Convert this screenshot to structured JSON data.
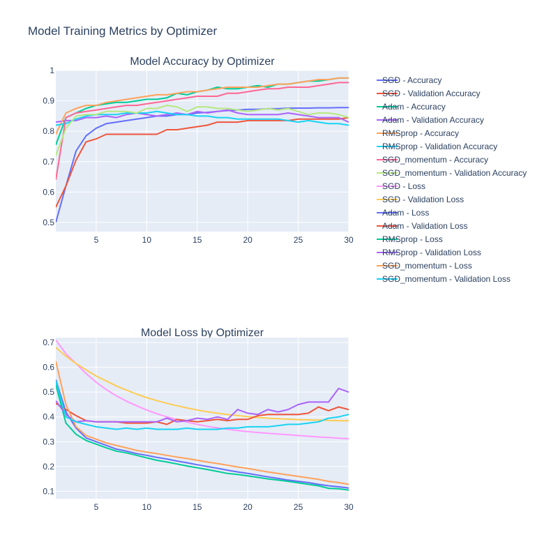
{
  "title": "Model Training Metrics by Optimizer",
  "colors": {
    "plot_bg": "#E5ECF6",
    "grid": "#ffffff",
    "text": "#2a3f5f"
  },
  "legend_position": "right",
  "chart_data": [
    {
      "type": "line",
      "title": "Model Accuracy by Optimizer",
      "xlabel": "",
      "ylabel": "",
      "xlim": [
        1,
        30
      ],
      "ylim": [
        0.47,
        1.0
      ],
      "xticks": [
        5,
        10,
        15,
        20,
        25,
        30
      ],
      "yticks": [
        0.5,
        0.6,
        0.7,
        0.8,
        0.9,
        1
      ],
      "ytick_labels": [
        "0.5",
        "0.6",
        "0.7",
        "0.8",
        "0.9",
        "1"
      ],
      "grid": true,
      "x": [
        1,
        2,
        3,
        4,
        5,
        6,
        7,
        8,
        9,
        10,
        11,
        12,
        13,
        14,
        15,
        16,
        17,
        18,
        19,
        20,
        21,
        22,
        23,
        24,
        25,
        26,
        27,
        28,
        29,
        30
      ],
      "series": [
        {
          "name": "SGD - Accuracy",
          "color": "#636EFA",
          "values": [
            0.5,
            0.62,
            0.735,
            0.785,
            0.81,
            0.825,
            0.83,
            0.835,
            0.84,
            0.845,
            0.85,
            0.85,
            0.855,
            0.855,
            0.86,
            0.862,
            0.865,
            0.868,
            0.87,
            0.872,
            0.872,
            0.874,
            0.874,
            0.876,
            0.876,
            0.876,
            0.877,
            0.877,
            0.878,
            0.878
          ]
        },
        {
          "name": "SGD - Validation Accuracy",
          "color": "#EF553B",
          "values": [
            0.55,
            0.62,
            0.705,
            0.765,
            0.775,
            0.79,
            0.79,
            0.79,
            0.79,
            0.79,
            0.79,
            0.805,
            0.805,
            0.81,
            0.815,
            0.82,
            0.83,
            0.83,
            0.83,
            0.835,
            0.835,
            0.835,
            0.835,
            0.835,
            0.84,
            0.84,
            0.84,
            0.84,
            0.84,
            0.845
          ]
        },
        {
          "name": "Adam - Accuracy",
          "color": "#00CC96",
          "values": [
            0.755,
            0.845,
            0.86,
            0.875,
            0.885,
            0.89,
            0.895,
            0.895,
            0.9,
            0.905,
            0.905,
            0.91,
            0.925,
            0.92,
            0.93,
            0.935,
            0.945,
            0.94,
            0.94,
            0.945,
            0.95,
            0.945,
            0.955,
            0.955,
            0.96,
            0.965,
            0.965,
            0.97,
            0.975,
            0.975
          ]
        },
        {
          "name": "Adam - Validation Accuracy",
          "color": "#AB63FA",
          "values": [
            0.83,
            0.835,
            0.835,
            0.845,
            0.845,
            0.85,
            0.845,
            0.855,
            0.86,
            0.855,
            0.85,
            0.855,
            0.86,
            0.855,
            0.865,
            0.86,
            0.865,
            0.87,
            0.86,
            0.855,
            0.855,
            0.855,
            0.855,
            0.86,
            0.855,
            0.85,
            0.845,
            0.845,
            0.845,
            0.83
          ]
        },
        {
          "name": "RMSprop - Accuracy",
          "color": "#FFA15A",
          "values": [
            0.79,
            0.86,
            0.875,
            0.885,
            0.885,
            0.895,
            0.9,
            0.905,
            0.91,
            0.915,
            0.92,
            0.92,
            0.925,
            0.93,
            0.93,
            0.935,
            0.94,
            0.945,
            0.945,
            0.945,
            0.945,
            0.95,
            0.955,
            0.955,
            0.96,
            0.965,
            0.97,
            0.97,
            0.975,
            0.975
          ]
        },
        {
          "name": "RMSprop - Validation Accuracy",
          "color": "#19D3F3",
          "values": [
            0.82,
            0.825,
            0.84,
            0.85,
            0.855,
            0.855,
            0.855,
            0.86,
            0.86,
            0.86,
            0.865,
            0.86,
            0.855,
            0.855,
            0.85,
            0.85,
            0.845,
            0.845,
            0.84,
            0.84,
            0.84,
            0.84,
            0.84,
            0.835,
            0.83,
            0.835,
            0.83,
            0.825,
            0.825,
            0.82
          ]
        },
        {
          "name": "SGD_momentum - Accuracy",
          "color": "#FF6692",
          "values": [
            0.64,
            0.845,
            0.86,
            0.865,
            0.87,
            0.875,
            0.88,
            0.885,
            0.885,
            0.89,
            0.895,
            0.9,
            0.905,
            0.91,
            0.915,
            0.915,
            0.915,
            0.925,
            0.925,
            0.93,
            0.935,
            0.94,
            0.94,
            0.945,
            0.945,
            0.945,
            0.95,
            0.955,
            0.96,
            0.96
          ]
        },
        {
          "name": "SGD_momentum - Validation Accuracy",
          "color": "#B6E880",
          "values": [
            0.72,
            0.81,
            0.85,
            0.855,
            0.855,
            0.865,
            0.865,
            0.865,
            0.86,
            0.875,
            0.875,
            0.885,
            0.88,
            0.865,
            0.88,
            0.88,
            0.875,
            0.875,
            0.87,
            0.865,
            0.87,
            0.875,
            0.87,
            0.875,
            0.865,
            0.855,
            0.86,
            0.86,
            0.855,
            0.845
          ]
        }
      ]
    },
    {
      "type": "line",
      "title": "Model Loss by Optimizer",
      "xlabel": "",
      "ylabel": "",
      "xlim": [
        1,
        30
      ],
      "ylim": [
        0.07,
        0.72
      ],
      "xticks": [
        5,
        10,
        15,
        20,
        25,
        30
      ],
      "yticks": [
        0.1,
        0.2,
        0.3,
        0.4,
        0.5,
        0.6,
        0.7
      ],
      "ytick_labels": [
        "0.1",
        "0.2",
        "0.3",
        "0.4",
        "0.5",
        "0.6",
        "0.7"
      ],
      "grid": true,
      "x": [
        1,
        2,
        3,
        4,
        5,
        6,
        7,
        8,
        9,
        10,
        11,
        12,
        13,
        14,
        15,
        16,
        17,
        18,
        19,
        20,
        21,
        22,
        23,
        24,
        25,
        26,
        27,
        28,
        29,
        30
      ],
      "series": [
        {
          "name": "SGD - Loss",
          "color": "#FF97FF",
          "values": [
            0.71,
            0.655,
            0.615,
            0.575,
            0.54,
            0.51,
            0.485,
            0.463,
            0.445,
            0.428,
            0.413,
            0.4,
            0.389,
            0.379,
            0.37,
            0.362,
            0.356,
            0.35,
            0.345,
            0.341,
            0.337,
            0.334,
            0.331,
            0.328,
            0.325,
            0.322,
            0.319,
            0.317,
            0.314,
            0.312
          ]
        },
        {
          "name": "SGD - Validation Loss",
          "color": "#FECB52",
          "values": [
            0.68,
            0.645,
            0.615,
            0.59,
            0.565,
            0.545,
            0.525,
            0.508,
            0.492,
            0.478,
            0.466,
            0.455,
            0.445,
            0.436,
            0.428,
            0.421,
            0.415,
            0.41,
            0.405,
            0.401,
            0.398,
            0.395,
            0.393,
            0.391,
            0.389,
            0.388,
            0.387,
            0.386,
            0.385,
            0.384
          ]
        },
        {
          "name": "Adam - Loss",
          "color": "#636EFA",
          "values": [
            0.55,
            0.42,
            0.355,
            0.315,
            0.3,
            0.285,
            0.27,
            0.262,
            0.252,
            0.245,
            0.237,
            0.23,
            0.222,
            0.215,
            0.207,
            0.2,
            0.193,
            0.185,
            0.178,
            0.172,
            0.165,
            0.158,
            0.152,
            0.145,
            0.14,
            0.135,
            0.128,
            0.122,
            0.118,
            0.113
          ]
        },
        {
          "name": "Adam - Validation Loss",
          "color": "#EF553B",
          "values": [
            0.455,
            0.43,
            0.405,
            0.385,
            0.38,
            0.38,
            0.38,
            0.375,
            0.375,
            0.375,
            0.38,
            0.37,
            0.39,
            0.385,
            0.38,
            0.385,
            0.39,
            0.385,
            0.39,
            0.39,
            0.405,
            0.41,
            0.41,
            0.41,
            0.41,
            0.415,
            0.44,
            0.425,
            0.44,
            0.43
          ]
        },
        {
          "name": "RMSprop - Loss",
          "color": "#00CC96",
          "values": [
            0.53,
            0.375,
            0.33,
            0.305,
            0.29,
            0.275,
            0.262,
            0.255,
            0.245,
            0.235,
            0.225,
            0.218,
            0.21,
            0.202,
            0.195,
            0.188,
            0.18,
            0.172,
            0.168,
            0.162,
            0.156,
            0.15,
            0.145,
            0.14,
            0.134,
            0.128,
            0.122,
            0.112,
            0.11,
            0.105
          ]
        },
        {
          "name": "RMSprop - Validation Loss",
          "color": "#AB63FA",
          "values": [
            0.465,
            0.41,
            0.38,
            0.385,
            0.38,
            0.38,
            0.38,
            0.38,
            0.38,
            0.38,
            0.38,
            0.395,
            0.38,
            0.385,
            0.395,
            0.39,
            0.4,
            0.39,
            0.43,
            0.415,
            0.41,
            0.43,
            0.42,
            0.43,
            0.45,
            0.46,
            0.46,
            0.46,
            0.515,
            0.5
          ]
        },
        {
          "name": "SGD_momentum - Loss",
          "color": "#FFA15A",
          "values": [
            0.625,
            0.45,
            0.36,
            0.325,
            0.31,
            0.295,
            0.285,
            0.275,
            0.265,
            0.258,
            0.252,
            0.245,
            0.238,
            0.232,
            0.225,
            0.218,
            0.212,
            0.205,
            0.198,
            0.192,
            0.185,
            0.178,
            0.172,
            0.166,
            0.16,
            0.154,
            0.148,
            0.14,
            0.135,
            0.128
          ]
        },
        {
          "name": "SGD_momentum - Validation Loss",
          "color": "#19D3F3",
          "values": [
            0.545,
            0.4,
            0.38,
            0.37,
            0.36,
            0.355,
            0.35,
            0.355,
            0.35,
            0.355,
            0.35,
            0.35,
            0.35,
            0.355,
            0.35,
            0.35,
            0.35,
            0.355,
            0.355,
            0.36,
            0.36,
            0.36,
            0.365,
            0.37,
            0.37,
            0.375,
            0.38,
            0.395,
            0.4,
            0.41
          ]
        }
      ]
    }
  ]
}
